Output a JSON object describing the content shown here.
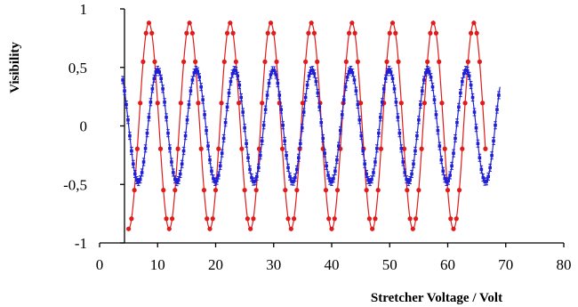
{
  "chart_data": {
    "type": "scatter",
    "xlabel": "Stretcher Voltage / Volt",
    "ylabel": "Visibility",
    "xlim": [
      0,
      80
    ],
    "ylim": [
      -1,
      1
    ],
    "x_ticks": [
      "0",
      "10",
      "20",
      "30",
      "40",
      "50",
      "60",
      "70",
      "80"
    ],
    "y_ticks": [
      "1",
      "0,5",
      "0",
      "-0,5",
      "-1"
    ],
    "grid": false,
    "legend": "none",
    "series": [
      {
        "color": "#e01b1b",
        "marker": "circle",
        "fit_line": true,
        "model": {
          "amplitude": 0.88,
          "period": 7.0,
          "peak_x": 8.5,
          "x_start": 5.0,
          "x_end": 66.5
        }
      },
      {
        "color": "#1f1fd6",
        "marker": "square-with-errorbars",
        "fit_line": true,
        "model": {
          "amplitude": 0.48,
          "period": 6.65,
          "peak_x": 10.0,
          "x_start": 4.0,
          "x_end": 69.0
        }
      }
    ]
  }
}
